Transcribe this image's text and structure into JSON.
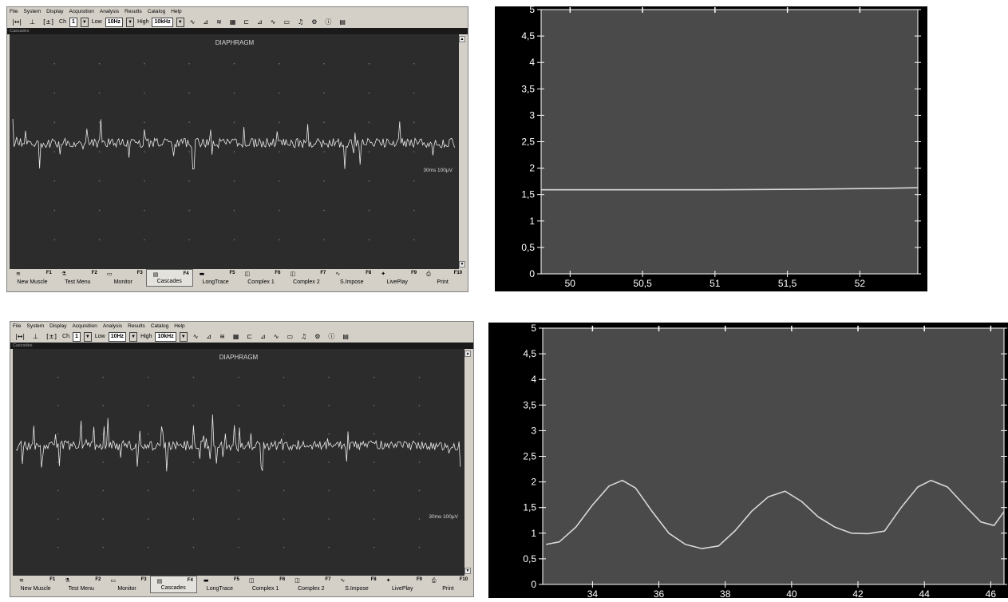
{
  "menu": [
    "File",
    "System",
    "Display",
    "Acquisition",
    "Analysis",
    "Results",
    "Catalog",
    "Help"
  ],
  "toolbar": {
    "ch_label": "Ch",
    "ch_value": "1",
    "low_label": "Low",
    "low_value": "10Hz",
    "high_label": "High",
    "high_value": "10kHz"
  },
  "trace_panel": {
    "title": "Cascades",
    "muscle": "DIAPHRAGM",
    "scale": "30ms  100μV"
  },
  "fkeys": [
    {
      "key": "F1",
      "label": "New Muscle",
      "icon": "muscle-icon"
    },
    {
      "key": "F2",
      "label": "Test Menu",
      "icon": "test-menu-icon"
    },
    {
      "key": "F3",
      "label": "Monitor",
      "icon": "monitor-icon"
    },
    {
      "key": "F4",
      "label": "Cascades",
      "icon": "cascades-icon",
      "active": true
    },
    {
      "key": "F5",
      "label": "LongTrace",
      "icon": "longtrace-icon"
    },
    {
      "key": "F6",
      "label": "Complex 1",
      "icon": "complex1-icon"
    },
    {
      "key": "F7",
      "label": "Complex 2",
      "icon": "complex2-icon"
    },
    {
      "key": "F8",
      "label": "S.Impose",
      "icon": "superimpose-icon"
    },
    {
      "key": "F9",
      "label": "LivePlay",
      "icon": "liveplay-icon"
    },
    {
      "key": "F10",
      "label": "Print",
      "icon": "print-icon"
    }
  ],
  "chart_data": [
    {
      "type": "line",
      "title": "",
      "xlabel": "",
      "ylabel": "",
      "xlim": [
        49.8,
        52.4
      ],
      "ylim": [
        0,
        5
      ],
      "xticks": [
        "50",
        "50,5",
        "51",
        "51,5",
        "52"
      ],
      "xtick_values": [
        50,
        50.5,
        51,
        51.5,
        52
      ],
      "yticks": [
        "0",
        "0,5",
        "1",
        "1,5",
        "2",
        "2,5",
        "3",
        "3,5",
        "4",
        "4,5",
        "5"
      ],
      "ytick_values": [
        0,
        0.5,
        1,
        1.5,
        2,
        2.5,
        3,
        3.5,
        4,
        4.5,
        5
      ],
      "x": [
        49.8,
        50.4,
        51.0,
        51.6,
        52.2,
        52.4
      ],
      "y": [
        1.59,
        1.59,
        1.59,
        1.6,
        1.62,
        1.63
      ],
      "grid": false,
      "colors": {
        "background": "#4a4a4a",
        "frame": "#000000",
        "line": "#d8d8d8",
        "text": "#ffffff"
      }
    },
    {
      "type": "line",
      "title": "",
      "xlabel": "",
      "ylabel": "",
      "xlim": [
        32.5,
        46.4
      ],
      "ylim": [
        0,
        5
      ],
      "xticks": [
        "34",
        "36",
        "38",
        "40",
        "42",
        "44",
        "46"
      ],
      "xtick_values": [
        34,
        36,
        38,
        40,
        42,
        44,
        46
      ],
      "yticks": [
        "0",
        "0,5",
        "1",
        "1,5",
        "2",
        "2,5",
        "3",
        "3,5",
        "4",
        "4,5",
        "5"
      ],
      "ytick_values": [
        0,
        0.5,
        1,
        1.5,
        2,
        2.5,
        3,
        3.5,
        4,
        4.5,
        5
      ],
      "x": [
        32.6,
        33.0,
        33.5,
        34.0,
        34.5,
        34.9,
        35.3,
        35.8,
        36.3,
        36.8,
        37.3,
        37.8,
        38.3,
        38.8,
        39.3,
        39.8,
        40.3,
        40.8,
        41.3,
        41.8,
        42.3,
        42.8,
        43.3,
        43.8,
        44.2,
        44.7,
        45.2,
        45.7,
        46.1,
        46.4
      ],
      "y": [
        0.78,
        0.83,
        1.12,
        1.55,
        1.92,
        2.03,
        1.88,
        1.42,
        1.0,
        0.78,
        0.7,
        0.75,
        1.05,
        1.43,
        1.71,
        1.82,
        1.62,
        1.32,
        1.12,
        1.0,
        0.99,
        1.04,
        1.5,
        1.9,
        2.03,
        1.9,
        1.55,
        1.22,
        1.15,
        1.42
      ],
      "grid": false,
      "colors": {
        "background": "#4a4a4a",
        "frame": "#000000",
        "line": "#d8d8d8",
        "text": "#ffffff"
      }
    }
  ]
}
